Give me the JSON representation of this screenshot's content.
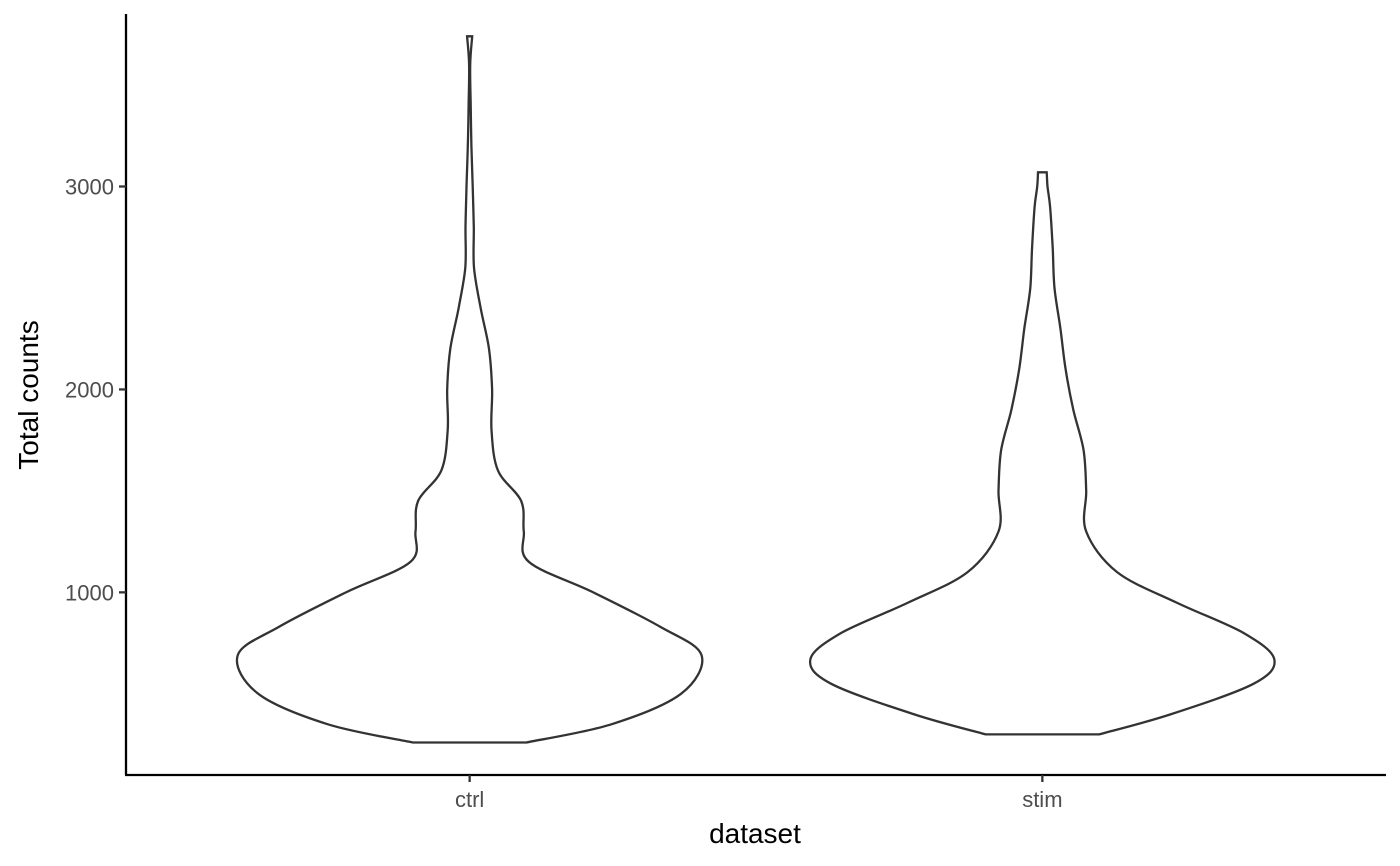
{
  "chart_data": {
    "type": "violin",
    "xlabel": "dataset",
    "ylabel": "Total counts",
    "ylim": [
      100,
      3850
    ],
    "y_ticks": [
      1000,
      2000,
      3000
    ],
    "categories": [
      "ctrl",
      "stim"
    ],
    "grid": false,
    "legend": "none",
    "violins": [
      {
        "category": "ctrl",
        "min": 260,
        "max": 3740,
        "profile": [
          {
            "y": 260,
            "w": 0.22
          },
          {
            "y": 350,
            "w": 0.55
          },
          {
            "y": 500,
            "w": 0.82
          },
          {
            "y": 690,
            "w": 0.9
          },
          {
            "y": 830,
            "w": 0.74
          },
          {
            "y": 1000,
            "w": 0.48
          },
          {
            "y": 1150,
            "w": 0.23
          },
          {
            "y": 1300,
            "w": 0.21
          },
          {
            "y": 1450,
            "w": 0.2
          },
          {
            "y": 1600,
            "w": 0.11
          },
          {
            "y": 1800,
            "w": 0.085
          },
          {
            "y": 2000,
            "w": 0.087
          },
          {
            "y": 2200,
            "w": 0.075
          },
          {
            "y": 2400,
            "w": 0.043
          },
          {
            "y": 2600,
            "w": 0.017
          },
          {
            "y": 2800,
            "w": 0.016
          },
          {
            "y": 3000,
            "w": 0.012
          },
          {
            "y": 3200,
            "w": 0.007
          },
          {
            "y": 3400,
            "w": 0.004
          },
          {
            "y": 3600,
            "w": 0.002
          },
          {
            "y": 3740,
            "w": 0.01
          }
        ]
      },
      {
        "category": "stim",
        "min": 300,
        "max": 3070,
        "profile": [
          {
            "y": 300,
            "w": 0.22
          },
          {
            "y": 400,
            "w": 0.5
          },
          {
            "y": 550,
            "w": 0.82
          },
          {
            "y": 670,
            "w": 0.9
          },
          {
            "y": 800,
            "w": 0.78
          },
          {
            "y": 950,
            "w": 0.52
          },
          {
            "y": 1100,
            "w": 0.29
          },
          {
            "y": 1300,
            "w": 0.17
          },
          {
            "y": 1500,
            "w": 0.17
          },
          {
            "y": 1700,
            "w": 0.16
          },
          {
            "y": 1900,
            "w": 0.12
          },
          {
            "y": 2100,
            "w": 0.09
          },
          {
            "y": 2300,
            "w": 0.07
          },
          {
            "y": 2500,
            "w": 0.047
          },
          {
            "y": 2700,
            "w": 0.04
          },
          {
            "y": 2900,
            "w": 0.03
          },
          {
            "y": 3000,
            "w": 0.02
          },
          {
            "y": 3070,
            "w": 0.017
          }
        ]
      }
    ]
  }
}
